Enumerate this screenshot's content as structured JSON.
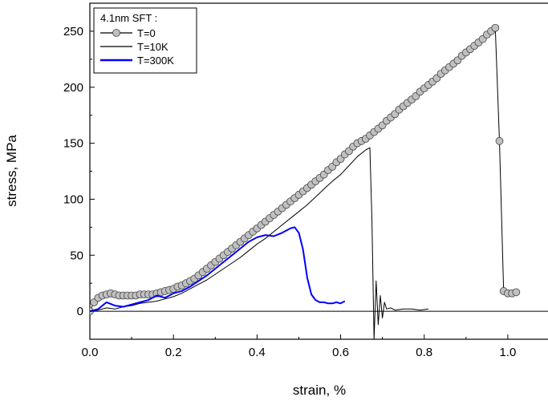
{
  "chart_data": {
    "type": "line",
    "xlabel": "strain, %",
    "ylabel": "stress, MPa",
    "xlim": [
      0.0,
      1.1
    ],
    "ylim": [
      -25,
      275
    ],
    "xticks": [
      0.0,
      0.2,
      0.4,
      0.6,
      0.8,
      1.0
    ],
    "yticks": [
      0,
      50,
      100,
      150,
      200,
      250
    ],
    "xtick_labels": [
      "0.0",
      "0.2",
      "0.4",
      "0.6",
      "0.8",
      "1.0"
    ],
    "ytick_labels": [
      "0",
      "50",
      "100",
      "150",
      "200",
      "250"
    ],
    "grid": false,
    "legend_position": "top-left",
    "legend_title": "4.1nm SFT :",
    "baseline_y": 0,
    "series": [
      {
        "name": "T=0",
        "color": "#000000",
        "marker": "circle",
        "marker_fill": "#c0c0c0",
        "x": [
          0.0,
          0.01,
          0.02,
          0.03,
          0.04,
          0.05,
          0.06,
          0.07,
          0.08,
          0.09,
          0.1,
          0.11,
          0.12,
          0.13,
          0.14,
          0.15,
          0.16,
          0.17,
          0.18,
          0.19,
          0.2,
          0.21,
          0.22,
          0.23,
          0.24,
          0.25,
          0.26,
          0.27,
          0.28,
          0.29,
          0.3,
          0.31,
          0.32,
          0.33,
          0.34,
          0.35,
          0.36,
          0.37,
          0.38,
          0.39,
          0.4,
          0.41,
          0.42,
          0.43,
          0.44,
          0.45,
          0.46,
          0.47,
          0.48,
          0.49,
          0.5,
          0.51,
          0.52,
          0.53,
          0.54,
          0.55,
          0.56,
          0.57,
          0.58,
          0.59,
          0.6,
          0.61,
          0.62,
          0.63,
          0.64,
          0.65,
          0.66,
          0.67,
          0.68,
          0.69,
          0.7,
          0.71,
          0.72,
          0.73,
          0.74,
          0.75,
          0.76,
          0.77,
          0.78,
          0.79,
          0.8,
          0.81,
          0.82,
          0.83,
          0.84,
          0.85,
          0.86,
          0.87,
          0.88,
          0.89,
          0.9,
          0.91,
          0.92,
          0.93,
          0.94,
          0.95,
          0.96,
          0.97,
          0.98,
          0.99,
          1.0,
          1.01,
          1.02
        ],
        "y": [
          0,
          8,
          12,
          14,
          15,
          16,
          15,
          14,
          14,
          14,
          14,
          14,
          15,
          15,
          15,
          15,
          16,
          17,
          18,
          19,
          20,
          22,
          23,
          25,
          27,
          29,
          32,
          35,
          38,
          41,
          44,
          47,
          50,
          53,
          56,
          59,
          62,
          65,
          68,
          71,
          74,
          77,
          80,
          83,
          86,
          89,
          92,
          95,
          98,
          101,
          104,
          107,
          110,
          113,
          116,
          119,
          122,
          126,
          129,
          133,
          136,
          140,
          143,
          147,
          150,
          152,
          154,
          157,
          160,
          163,
          166,
          170,
          173,
          176,
          180,
          183,
          186,
          189,
          192,
          196,
          199,
          202,
          205,
          208,
          212,
          215,
          218,
          221,
          224,
          228,
          231,
          234,
          237,
          240,
          243,
          247,
          250,
          253,
          152,
          18,
          16,
          16,
          17
        ]
      },
      {
        "name": "T=10K",
        "color": "#000000",
        "marker": "none",
        "x": [
          0.0,
          0.02,
          0.04,
          0.06,
          0.08,
          0.1,
          0.12,
          0.14,
          0.16,
          0.18,
          0.2,
          0.22,
          0.24,
          0.26,
          0.28,
          0.3,
          0.32,
          0.34,
          0.36,
          0.38,
          0.4,
          0.42,
          0.44,
          0.46,
          0.48,
          0.5,
          0.52,
          0.54,
          0.56,
          0.58,
          0.6,
          0.62,
          0.64,
          0.66,
          0.67,
          0.675,
          0.68,
          0.685,
          0.69,
          0.695,
          0.7,
          0.705,
          0.71,
          0.72,
          0.73,
          0.75,
          0.77,
          0.79,
          0.81
        ],
        "y": [
          0,
          1,
          3,
          2,
          4,
          5,
          7,
          8,
          9,
          11,
          13,
          16,
          20,
          24,
          28,
          33,
          38,
          43,
          48,
          54,
          60,
          65,
          71,
          77,
          83,
          89,
          95,
          102,
          109,
          116,
          122,
          130,
          138,
          144,
          146,
          80,
          -25,
          27,
          -12,
          14,
          -6,
          8,
          2,
          3,
          1,
          2,
          2,
          1,
          2
        ]
      },
      {
        "name": "T=300K",
        "color": "#0000ff",
        "marker": "none",
        "x": [
          0.0,
          0.02,
          0.04,
          0.06,
          0.08,
          0.1,
          0.12,
          0.14,
          0.16,
          0.18,
          0.2,
          0.22,
          0.24,
          0.26,
          0.28,
          0.3,
          0.32,
          0.34,
          0.36,
          0.38,
          0.4,
          0.42,
          0.44,
          0.46,
          0.47,
          0.48,
          0.49,
          0.5,
          0.51,
          0.52,
          0.53,
          0.54,
          0.55,
          0.56,
          0.57,
          0.58,
          0.59,
          0.6,
          0.61
        ],
        "y": [
          0,
          2,
          8,
          5,
          4,
          6,
          8,
          10,
          14,
          12,
          16,
          18,
          22,
          27,
          32,
          38,
          44,
          50,
          56,
          62,
          66,
          68,
          67,
          70,
          72,
          74,
          75,
          70,
          55,
          30,
          15,
          10,
          8,
          8,
          7,
          7,
          8,
          7,
          9
        ]
      }
    ]
  }
}
